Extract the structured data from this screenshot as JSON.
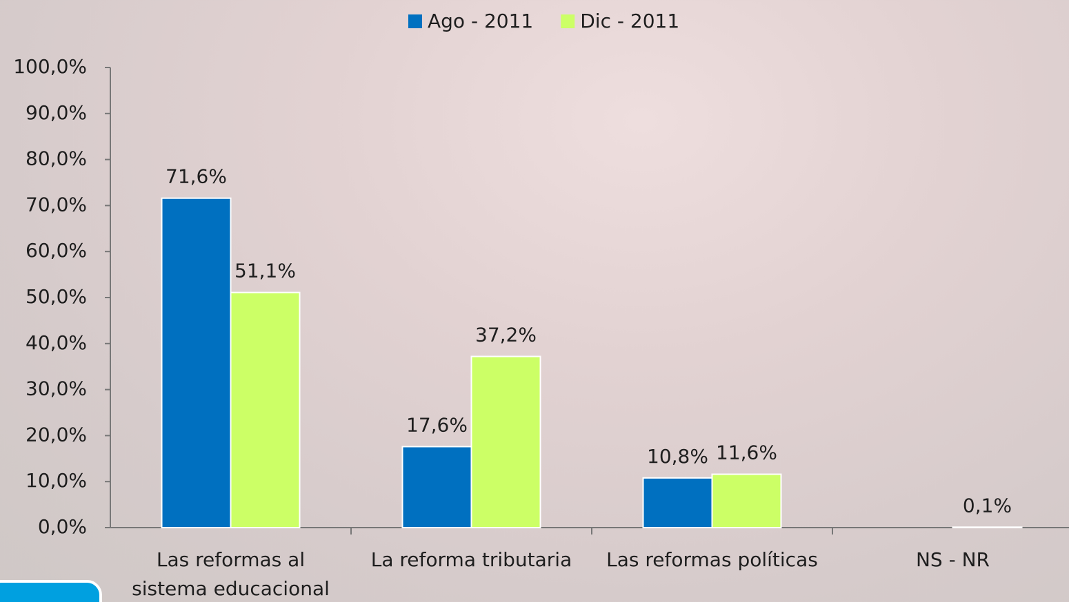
{
  "chart_data": {
    "type": "bar",
    "categories": [
      "Las reformas al sistema educacional",
      "La reforma tributaria",
      "Las reformas políticas",
      "NS - NR"
    ],
    "series": [
      {
        "name": "Ago - 2011",
        "color": "#0070c0",
        "values": [
          71.6,
          17.6,
          10.8,
          null
        ],
        "value_labels": [
          "71,6%",
          "17,6%",
          "10,8%",
          null
        ]
      },
      {
        "name": "Dic - 2011",
        "color": "#ccff66",
        "values": [
          51.1,
          37.2,
          11.6,
          0.1
        ],
        "value_labels": [
          "51,1%",
          "37,2%",
          "11,6%",
          "0,1%"
        ]
      }
    ],
    "ylim": [
      0,
      100
    ],
    "yticks": [
      {
        "value": 0,
        "label": "0,0%"
      },
      {
        "value": 10,
        "label": "10,0%"
      },
      {
        "value": 20,
        "label": "20,0%"
      },
      {
        "value": 30,
        "label": "30,0%"
      },
      {
        "value": 40,
        "label": "40,0%"
      },
      {
        "value": 50,
        "label": "50,0%"
      },
      {
        "value": 60,
        "label": "60,0%"
      },
      {
        "value": 70,
        "label": "70,0%"
      },
      {
        "value": 80,
        "label": "80,0%"
      },
      {
        "value": 90,
        "label": "90,0%"
      },
      {
        "value": 100,
        "label": "100,0%"
      }
    ],
    "legend": "top"
  }
}
